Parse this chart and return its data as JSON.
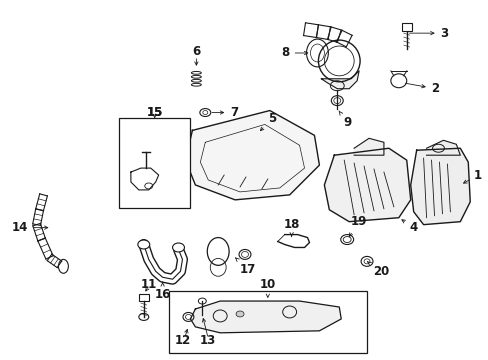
{
  "background_color": "#ffffff",
  "line_color": "#1a1a1a",
  "font_size": 8.5,
  "figsize": [
    4.89,
    3.6
  ],
  "dpi": 100
}
